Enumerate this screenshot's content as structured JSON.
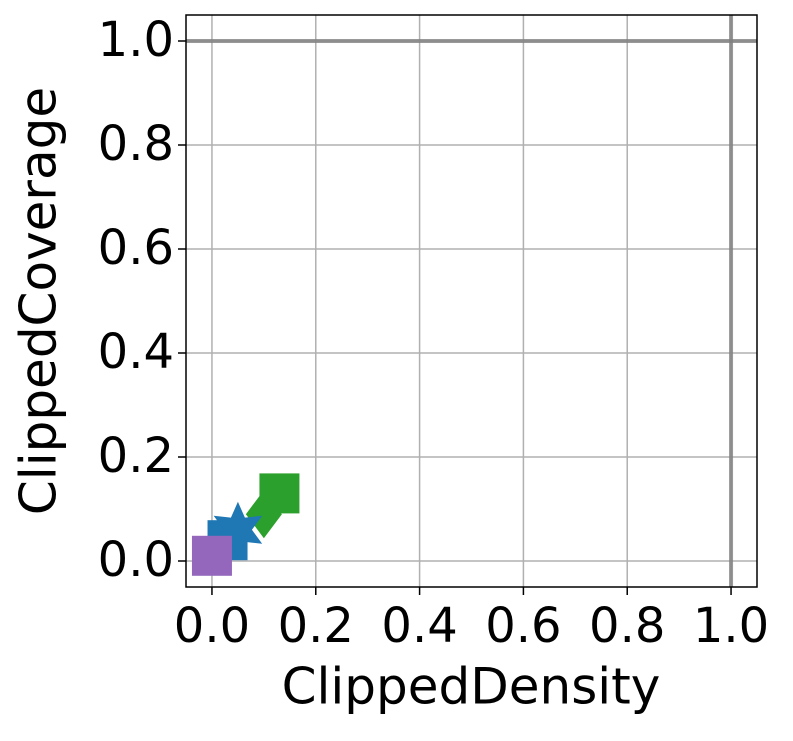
{
  "chart_data": {
    "type": "scatter",
    "xlabel": "ClippedDensity",
    "ylabel": "ClippedCoverage",
    "xlim": [
      -0.05,
      1.05
    ],
    "ylim": [
      -0.05,
      1.05
    ],
    "xticks": [
      {
        "value": 0,
        "label": "0.0"
      },
      {
        "value": 0.2,
        "label": "0.2"
      },
      {
        "value": 0.4,
        "label": "0.4"
      },
      {
        "value": 0.6,
        "label": "0.6"
      },
      {
        "value": 0.8,
        "label": "0.8"
      },
      {
        "value": 1,
        "label": "1.0"
      }
    ],
    "yticks": [
      {
        "value": 0,
        "label": "0.0"
      },
      {
        "value": 0.2,
        "label": "0.2"
      },
      {
        "value": 0.4,
        "label": "0.4"
      },
      {
        "value": 0.6,
        "label": "0.6"
      },
      {
        "value": 0.8,
        "label": "0.8"
      },
      {
        "value": 1,
        "label": "1.0"
      }
    ],
    "grid": true,
    "hlines": [
      1
    ],
    "vlines": [
      1
    ],
    "series": [
      {
        "color": "#2ca02c",
        "marker": "diamond",
        "x": [
          0.1
        ],
        "y": [
          0.09
        ]
      },
      {
        "color": "#2ca02c",
        "marker": "square",
        "x": [
          0.13
        ],
        "y": [
          0.13
        ]
      },
      {
        "color": "#1f77b4",
        "marker": "square",
        "x": [
          0.03
        ],
        "y": [
          0.04
        ]
      },
      {
        "color": "#1f77b4",
        "marker": "star",
        "x": [
          0.05
        ],
        "y": [
          0.06
        ]
      },
      {
        "color": "#9467bd",
        "marker": "square",
        "x": [
          0.0
        ],
        "y": [
          0.01
        ]
      }
    ]
  }
}
